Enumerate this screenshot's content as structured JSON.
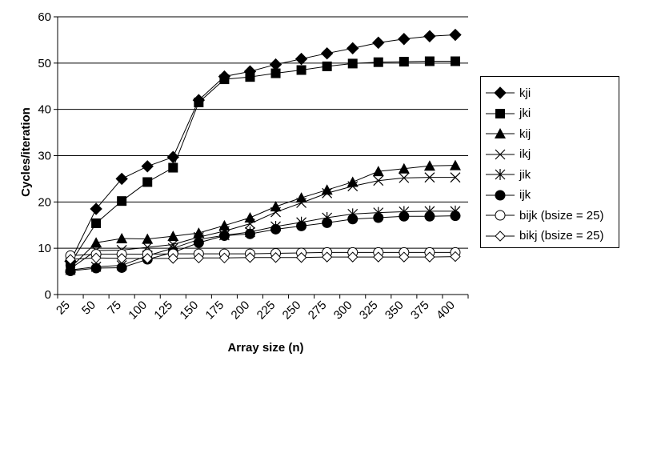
{
  "chart_data": {
    "type": "line",
    "title": "",
    "xlabel": "Array size (n)",
    "ylabel": "Cycles/iteration",
    "categories": [
      "25",
      "50",
      "75",
      "100",
      "125",
      "150",
      "175",
      "200",
      "225",
      "250",
      "275",
      "300",
      "325",
      "350",
      "375",
      "400"
    ],
    "ylim": [
      0,
      60
    ],
    "yticks": [
      0,
      10,
      20,
      30,
      40,
      50,
      60
    ],
    "grid": "horizontal",
    "legend_position": "right",
    "series": [
      {
        "name": "kji",
        "marker": "diamond-filled",
        "values": [
          7.2,
          18.5,
          25.0,
          27.7,
          29.7,
          42.0,
          47.1,
          48.2,
          49.7,
          50.9,
          52.1,
          53.2,
          54.4,
          55.2,
          55.8,
          56.1
        ]
      },
      {
        "name": "jki",
        "marker": "square-filled",
        "values": [
          6.8,
          15.4,
          20.2,
          24.3,
          27.4,
          41.5,
          46.5,
          47.0,
          47.8,
          48.5,
          49.3,
          49.9,
          50.2,
          50.3,
          50.4,
          50.4
        ]
      },
      {
        "name": "kij",
        "marker": "triangle-filled",
        "values": [
          5.8,
          11.2,
          12.1,
          12.0,
          12.6,
          13.3,
          14.9,
          16.6,
          19.0,
          20.9,
          22.6,
          24.3,
          26.6,
          27.2,
          27.8,
          27.9
        ]
      },
      {
        "name": "ikj",
        "marker": "x",
        "values": [
          5.6,
          9.5,
          9.6,
          10.2,
          10.8,
          12.4,
          13.7,
          15.3,
          17.8,
          19.8,
          21.9,
          23.4,
          24.6,
          25.2,
          25.3,
          25.3
        ]
      },
      {
        "name": "jik",
        "marker": "star",
        "values": [
          5.3,
          6.0,
          6.3,
          8.4,
          10.0,
          11.9,
          12.8,
          13.5,
          14.7,
          15.6,
          16.6,
          17.4,
          17.7,
          17.9,
          18.0,
          18.0
        ]
      },
      {
        "name": "ijk",
        "marker": "circle-filled",
        "values": [
          5.1,
          5.7,
          5.8,
          7.6,
          9.1,
          11.2,
          12.7,
          13.1,
          14.1,
          14.8,
          15.5,
          16.3,
          16.6,
          16.9,
          16.9,
          17.0
        ]
      },
      {
        "name": "bijk (bsize = 25)",
        "marker": "circle-open",
        "values": [
          8.4,
          8.7,
          8.7,
          8.7,
          8.8,
          8.8,
          8.8,
          8.8,
          8.9,
          9.0,
          9.1,
          9.1,
          9.1,
          9.1,
          9.1,
          9.1
        ]
      },
      {
        "name": "bikj (bsize = 25)",
        "marker": "diamond-open",
        "values": [
          7.6,
          7.9,
          7.8,
          7.8,
          7.8,
          7.9,
          7.9,
          8.0,
          8.0,
          8.0,
          8.1,
          8.1,
          8.1,
          8.1,
          8.1,
          8.2
        ]
      }
    ]
  }
}
